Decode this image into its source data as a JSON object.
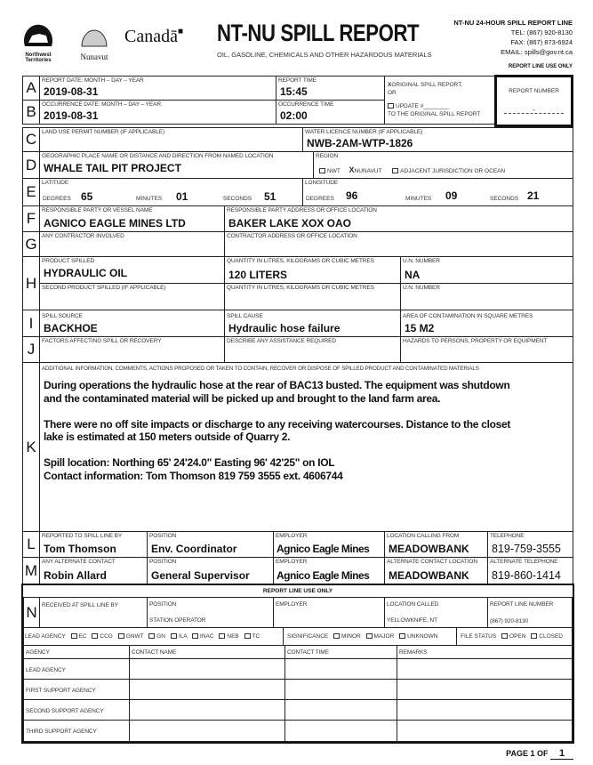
{
  "header": {
    "logos": {
      "nwt": "Northwest Territories",
      "nunavut": "Nunavut",
      "canada": "Canada"
    },
    "title": "NT-NU SPILL REPORT",
    "subtitle": "OIL, GASOLINE, CHEMICALS AND OTHER HAZARDOUS MATERIALS",
    "line_title": "NT-NU 24-HOUR SPILL REPORT LINE",
    "tel": "TEL: (867) 920-8130",
    "fax": "FAX: (867) 873-6924",
    "email": "EMAIL: spills@gov.nt.ca",
    "report_line_use_only": "REPORT LINE USE ONLY"
  },
  "rows": {
    "A": {
      "letter": "A",
      "date_label": "REPORT DATE: MONTH – DAY – YEAR",
      "date": "2019-08-31",
      "time_label": "REPORT TIME",
      "time": "15:45",
      "original_label": "ORIGINAL SPILL REPORT,",
      "or": "OR",
      "original_checked": "X",
      "report_number_label": "REPORT NUMBER",
      "report_number": "-"
    },
    "B": {
      "letter": "B",
      "date_label": "OCCURRENCE DATE: MONTH – DAY – YEAR",
      "date": "2019-08-31",
      "time_label": "OCCURRENCE TIME",
      "time": "02:00",
      "update_label": "UPDATE #",
      "update_suffix": "TO THE ORIGINAL SPILL REPORT"
    },
    "C": {
      "letter": "C",
      "land_label": "LAND USE PERMIT NUMBER (IF APPLICABLE)",
      "land": "",
      "water_label": "WATER LICENCE NUMBER (IF APPLICABLE)",
      "water": "NWB-2AM-WTP-1826"
    },
    "D": {
      "letter": "D",
      "place_label": "GEOGRAPHIC PLACE NAME OR DISTANCE AND DIRECTION FROM NAMED LOCATION",
      "place": "WHALE TAIL PIT PROJECT",
      "region_label": "REGION",
      "regions": [
        "NWT",
        "NUNAVUT",
        "ADJACENT JURISDICTION OR OCEAN"
      ],
      "region_selected": "NUNAVUT"
    },
    "E": {
      "letter": "E",
      "lat_label": "LATITUDE",
      "lon_label": "LONGITUDE",
      "degrees": "DEGREES",
      "minutes": "MINUTES",
      "seconds": "SECONDS",
      "lat": {
        "deg": "65",
        "min": "01",
        "sec": "51"
      },
      "lon": {
        "deg": "96",
        "min": "09",
        "sec": "21"
      }
    },
    "F": {
      "letter": "F",
      "party_label": "RESPONSIBLE PARTY OR VESSEL NAME",
      "party": "AGNICO EAGLE MINES LTD",
      "address_label": "RESPONSIBLE PARTY ADDRESS OR OFFICE LOCATION",
      "address": "BAKER LAKE XOX OAO"
    },
    "G": {
      "letter": "G",
      "contractor_label": "ANY CONTRACTOR INVOLVED",
      "contractor": "",
      "address_label": "CONTRACTOR ADDRESS OR OFFICE LOCATION",
      "address": ""
    },
    "H": {
      "letter": "H",
      "product_label": "PRODUCT SPILLED",
      "product": "HYDRAULIC OIL",
      "qty_label": "QUANTITY IN LITRES, KILOGRAMS OR CUBIC METRES",
      "qty": "120 LITERS",
      "un_label": "U.N. NUMBER",
      "un": "NA",
      "product2_label": "SECOND PRODUCT SPILLED (IF APPLICABLE)",
      "qty2_label": "QUANTITY IN LITRES, KILOGRAMS OR CUBIC METRES",
      "un2_label": "U.N. NUMBER"
    },
    "I": {
      "letter": "I",
      "source_label": "SPILL SOURCE",
      "source": "BACKHOE",
      "cause_label": "SPILL CAUSE",
      "cause": "Hydraulic hose failure",
      "area_label": "AREA OF CONTAMINATION IN SQUARE METRES",
      "area": "15 M2"
    },
    "J": {
      "letter": "J",
      "factors_label": "FACTORS AFFECTING SPILL OR RECOVERY",
      "assist_label": "DESCRIBE ANY ASSISTANCE REQUIRED",
      "hazards_label": "HAZARDS TO PERSONS, PROPERTY OR EQUIPMENT"
    },
    "K": {
      "letter": "K",
      "label": "ADDITIONAL INFORMATION, COMMENTS, ACTIONS PROPOSED OR TAKEN TO CONTAIN, RECOVER OR DISPOSE OF SPILLED PRODUCT AND CONTAMINATED MATERIALS",
      "lines": [
        "During operations the hydraulic hose at the rear of BAC13 busted.  The equipment was shutdown",
        "and the contaminated material will be picked up and brought to the land farm area.",
        "",
        "There were no off site impacts or discharge to any receiving watercourses.  Distance to the closet",
        "lake is estimated at 150 meters outside of Quarry 2.",
        "",
        "Spill location: Northing 65' 24'24.0\"   Easting 96' 42'25\" on IOL",
        "Contact information: Tom Thomson 819 759 3555 ext. 4606744"
      ]
    },
    "L": {
      "letter": "L",
      "by_label": "REPORTED TO SPILL LINE BY",
      "by": "Tom Thomson",
      "pos_label": "POSITION",
      "pos": "Env. Coordinator",
      "emp_label": "EMPLOYER",
      "emp": "Agnico Eagle Mines",
      "loc_label": "LOCATION CALLING FROM",
      "loc": "MEADOWBANK",
      "tel_label": "TELEPHONE",
      "tel": "819-759-3555"
    },
    "M": {
      "letter": "M",
      "by_label": "ANY ALTERNATE CONTACT",
      "by": "Robin Allard",
      "pos_label": "POSITION",
      "pos": "General Supervisor",
      "emp_label": "EMPLOYER",
      "emp": "Agnico Eagle Mines",
      "loc_label": "ALTERNATE CONTACT",
      "loc_label2": "LOCATION",
      "loc": "MEADOWBANK",
      "tel_label": "ALTERNATE TELEPHONE",
      "tel": "819-860-1414"
    },
    "N": {
      "letter": "N",
      "banner": "REPORT LINE USE ONLY",
      "by_label": "RECEIVED AT SPILL LINE BY",
      "pos_label": "POSITION",
      "pos": "STATION OPERATOR",
      "emp_label": "EMPLOYER",
      "loc_label": "LOCATION CALLED",
      "loc": "YELLOWKNIFE, NT",
      "num_label": "REPORT LINE NUMBER",
      "num": "(867) 920-8130"
    }
  },
  "lead_agency": {
    "label": "LEAD AGENCY",
    "options": [
      "EC",
      "CCG",
      "GNWT",
      "GN",
      "ILA",
      "INAC",
      "NEB",
      "TC"
    ]
  },
  "significance": {
    "label": "SIGNIFICANCE",
    "options": [
      "MINOR",
      "MAJOR",
      "UNKNOWN"
    ]
  },
  "file_status": {
    "label": "FILE STATUS",
    "options": [
      "OPEN",
      "CLOSED"
    ]
  },
  "agency_table": {
    "headers": [
      "AGENCY",
      "CONTACT NAME",
      "CONTACT TIME",
      "REMARKS"
    ],
    "rows": [
      "LEAD AGENCY",
      "FIRST SUPPORT AGENCY",
      "SECOND SUPPORT AGENCY",
      "THIRD SUPPORT AGENCY"
    ]
  },
  "footer": {
    "page_label": "PAGE 1 OF",
    "page_total": "1"
  }
}
